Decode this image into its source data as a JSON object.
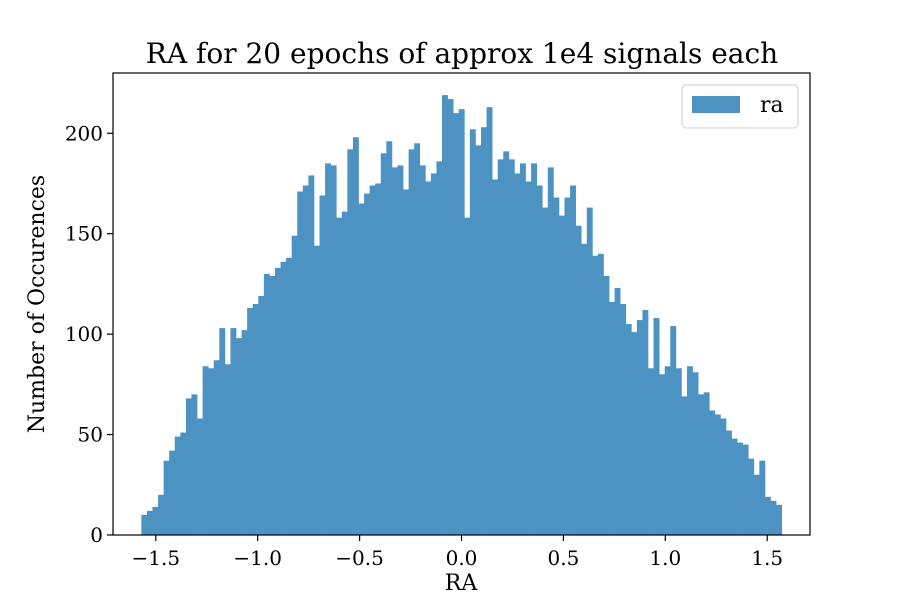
{
  "chart_data": {
    "type": "bar",
    "title": "RA for 20 epochs of approx 1e4 signals each",
    "xlabel": "RA",
    "ylabel": "Number of Occurences",
    "xlim": [
      -1.71,
      1.71
    ],
    "ylim": [
      0,
      230
    ],
    "x_ticks": [
      -1.5,
      -1.0,
      -0.5,
      0.0,
      0.5,
      1.0,
      1.5
    ],
    "x_tick_labels": [
      "−1.5",
      "−1.0",
      "−0.5",
      "0.0",
      "0.5",
      "1.0",
      "1.5"
    ],
    "y_ticks": [
      0,
      50,
      100,
      150,
      200
    ],
    "y_tick_labels": [
      "0",
      "50",
      "100",
      "150",
      "200"
    ],
    "bin_start": -1.5708,
    "bin_end": 1.5708,
    "color": "#4c92c3",
    "legend": {
      "label": "ra",
      "position": "top-right"
    },
    "grid": false,
    "series": [
      {
        "name": "ra",
        "values": [
          10,
          12,
          14,
          20,
          37,
          42,
          49,
          51,
          68,
          70,
          58,
          84,
          83,
          87,
          103,
          85,
          103,
          98,
          102,
          113,
          115,
          119,
          130,
          129,
          133,
          136,
          138,
          149,
          171,
          174,
          179,
          144,
          169,
          185,
          184,
          158,
          161,
          192,
          198,
          165,
          170,
          174,
          175,
          190,
          196,
          183,
          184,
          172,
          192,
          195,
          184,
          176,
          180,
          186,
          219,
          217,
          210,
          212,
          158,
          202,
          194,
          203,
          213,
          177,
          187,
          191,
          187,
          180,
          185,
          176,
          185,
          174,
          163,
          183,
          168,
          159,
          168,
          174,
          154,
          145,
          163,
          139,
          140,
          129,
          116,
          123,
          115,
          105,
          101,
          107,
          112,
          83,
          108,
          80,
          84,
          104,
          83,
          69,
          84,
          81,
          70,
          71,
          62,
          60,
          58,
          52,
          48,
          46,
          45,
          38,
          30,
          37,
          19,
          17,
          15
        ]
      }
    ]
  }
}
